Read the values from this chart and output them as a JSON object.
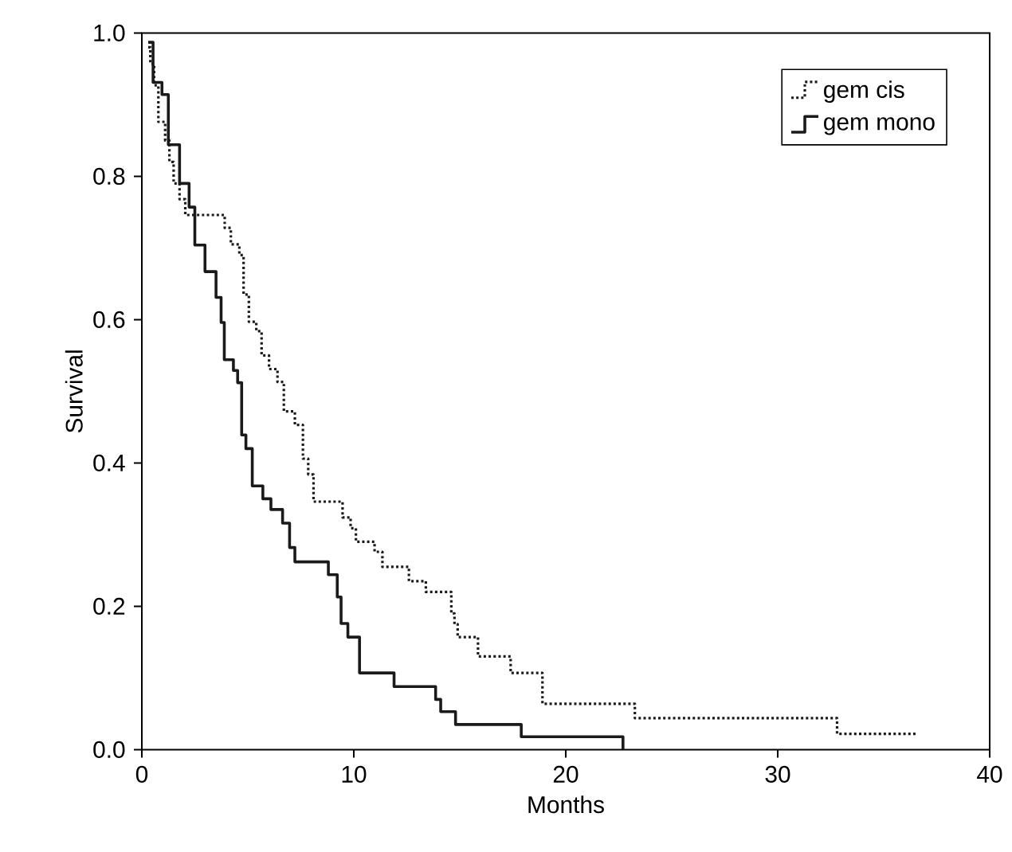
{
  "chart_data": {
    "type": "step",
    "xlabel": "Months",
    "ylabel": "Survival",
    "xlim": [
      0,
      40
    ],
    "ylim": [
      0,
      1
    ],
    "xticks": [
      0,
      10,
      20,
      30,
      40
    ],
    "yticks": [
      {
        "value": 0,
        "label": "0.0"
      },
      {
        "value": 0.2,
        "label": "0.2"
      },
      {
        "value": 0.4,
        "label": "0.4"
      },
      {
        "value": 0.6,
        "label": "0.6"
      },
      {
        "value": 0.8,
        "label": "0.8"
      },
      {
        "value": 1,
        "label": "1.0"
      }
    ],
    "legend": "top right",
    "grid": false,
    "series": [
      {
        "name": "gem cis",
        "color": "#1a1a1a",
        "line_style": "dotted",
        "x": [
          0.3,
          0.4,
          0.58,
          0.78,
          1.1,
          1.3,
          1.5,
          1.78,
          2.05,
          3.91,
          4.2,
          4.6,
          4.8,
          5.05,
          5.4,
          5.65,
          6.0,
          6.4,
          6.7,
          7.22,
          7.6,
          7.85,
          8.1,
          9.47,
          9.85,
          10.1,
          10.98,
          11.35,
          12.6,
          13.4,
          14.6,
          14.75,
          14.9,
          15.86,
          17.4,
          18.9,
          23.26,
          32.8,
          36.5
        ],
        "values": [
          0.98,
          0.957,
          0.927,
          0.876,
          0.85,
          0.82,
          0.79,
          0.768,
          0.746,
          0.728,
          0.705,
          0.69,
          0.635,
          0.597,
          0.584,
          0.55,
          0.531,
          0.513,
          0.472,
          0.453,
          0.406,
          0.384,
          0.346,
          0.324,
          0.309,
          0.29,
          0.276,
          0.255,
          0.235,
          0.22,
          0.19,
          0.175,
          0.157,
          0.13,
          0.107,
          0.064,
          0.044,
          0.022,
          0.022
        ]
      },
      {
        "name": "gem mono",
        "color": "#1a1a1a",
        "line_style": "solid",
        "x": [
          0.3,
          0.53,
          0.95,
          1.25,
          1.78,
          2.23,
          2.5,
          2.98,
          3.5,
          3.74,
          3.89,
          4.32,
          4.52,
          4.71,
          4.91,
          5.21,
          5.71,
          6.09,
          6.64,
          6.97,
          7.22,
          8.8,
          9.22,
          9.4,
          9.72,
          10.27,
          11.9,
          13.86,
          14.1,
          14.8,
          17.9,
          22.7
        ],
        "values": [
          0.987,
          0.931,
          0.914,
          0.844,
          0.79,
          0.757,
          0.704,
          0.667,
          0.631,
          0.596,
          0.544,
          0.529,
          0.512,
          0.439,
          0.42,
          0.368,
          0.35,
          0.335,
          0.316,
          0.282,
          0.262,
          0.244,
          0.213,
          0.176,
          0.157,
          0.107,
          0.088,
          0.07,
          0.053,
          0.035,
          0.018,
          0
        ]
      }
    ]
  }
}
